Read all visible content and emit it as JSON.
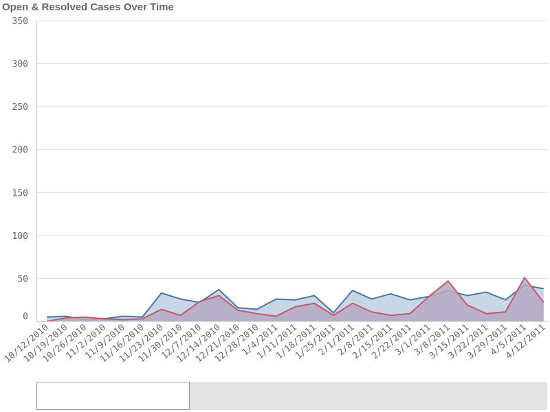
{
  "chart_data": {
    "type": "area",
    "title": "Open & Resolved Cases Over Time",
    "xlabel": "",
    "ylabel": "",
    "ylim": [
      0,
      350
    ],
    "yticks": [
      0,
      50,
      100,
      150,
      200,
      250,
      300,
      350
    ],
    "grid": true,
    "legend": "none",
    "categories": [
      "10/12/2010",
      "10/19/2010",
      "10/26/2010",
      "11/2/2010",
      "11/9/2010",
      "11/16/2010",
      "11/23/2010",
      "11/30/2010",
      "12/7/2010",
      "12/14/2010",
      "12/21/2010",
      "12/28/2010",
      "1/4/2011",
      "1/11/2011",
      "1/18/2011",
      "1/25/2011",
      "2/1/2011",
      "2/8/2011",
      "2/15/2011",
      "2/22/2011",
      "3/1/2011",
      "3/8/2011",
      "3/15/2011",
      "3/22/2011",
      "3/29/2011",
      "4/5/2011",
      "4/12/2011"
    ],
    "series": [
      {
        "color": "#4a74a8",
        "fill": "#c9d6e5",
        "values": [
          5,
          6,
          2,
          3,
          6,
          5,
          33,
          26,
          22,
          37,
          16,
          14,
          26,
          25,
          30,
          10,
          36,
          26,
          32,
          25,
          29,
          36,
          30,
          34,
          25,
          42,
          38
        ]
      },
      {
        "color": "#c05a6e",
        "fill": "#b4a9c3",
        "values": [
          0,
          4,
          5,
          3,
          2,
          3,
          14,
          7,
          23,
          30,
          13,
          9,
          6,
          17,
          21,
          7,
          21,
          11,
          7,
          9,
          29,
          47,
          19,
          9,
          11,
          51,
          22
        ]
      }
    ]
  },
  "scrollbar": {
    "position": 0,
    "visible_fraction": 0.3
  }
}
